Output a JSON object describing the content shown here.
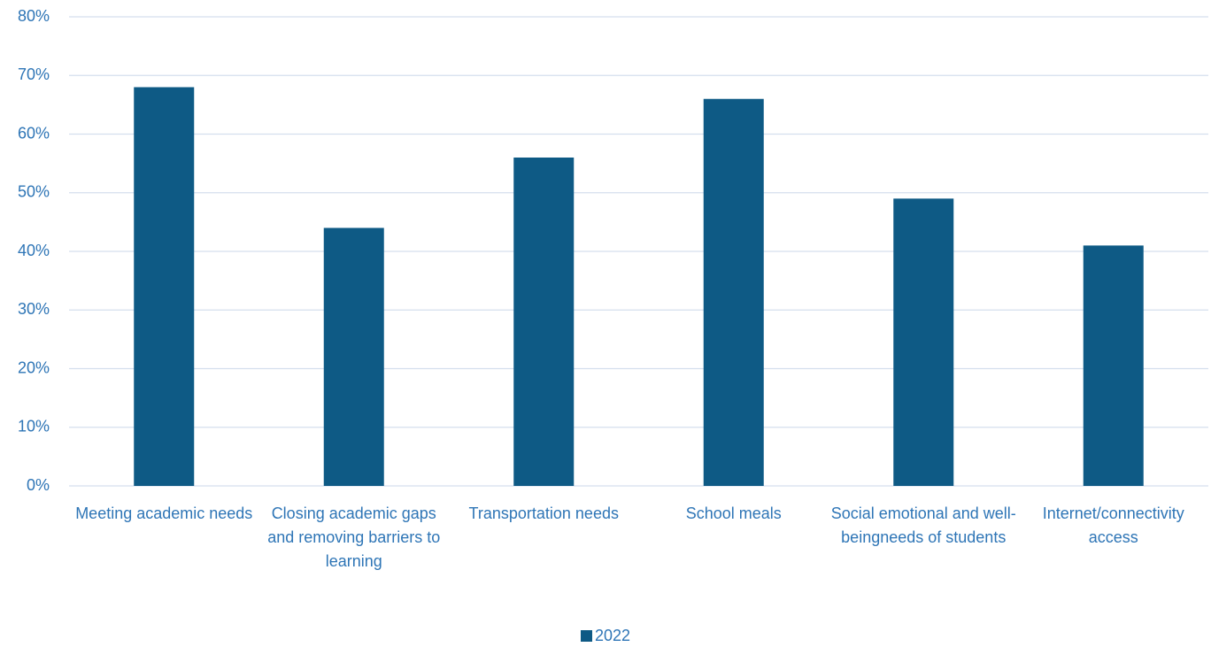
{
  "chart_data": {
    "type": "bar",
    "categories": [
      "Meeting academic needs",
      "Closing academic gaps and removing barriers to learning",
      "Transportation needs",
      "School meals",
      "Social emotional and well-beingneeds of students",
      "Internet/connectivity access"
    ],
    "series": [
      {
        "name": "2022",
        "color": "#0e5a85",
        "values": [
          68,
          44,
          56,
          66,
          49,
          41
        ]
      }
    ],
    "ylim": [
      0,
      80
    ],
    "yticks": [
      {
        "value": 0,
        "label": "0%"
      },
      {
        "value": 10,
        "label": "10%"
      },
      {
        "value": 20,
        "label": "20%"
      },
      {
        "value": 30,
        "label": "30%"
      },
      {
        "value": 40,
        "label": "40%"
      },
      {
        "value": 50,
        "label": "50%"
      },
      {
        "value": 60,
        "label": "60%"
      },
      {
        "value": 70,
        "label": "70%"
      },
      {
        "value": 80,
        "label": "80%"
      }
    ],
    "grid": true,
    "legend": "bottom"
  }
}
